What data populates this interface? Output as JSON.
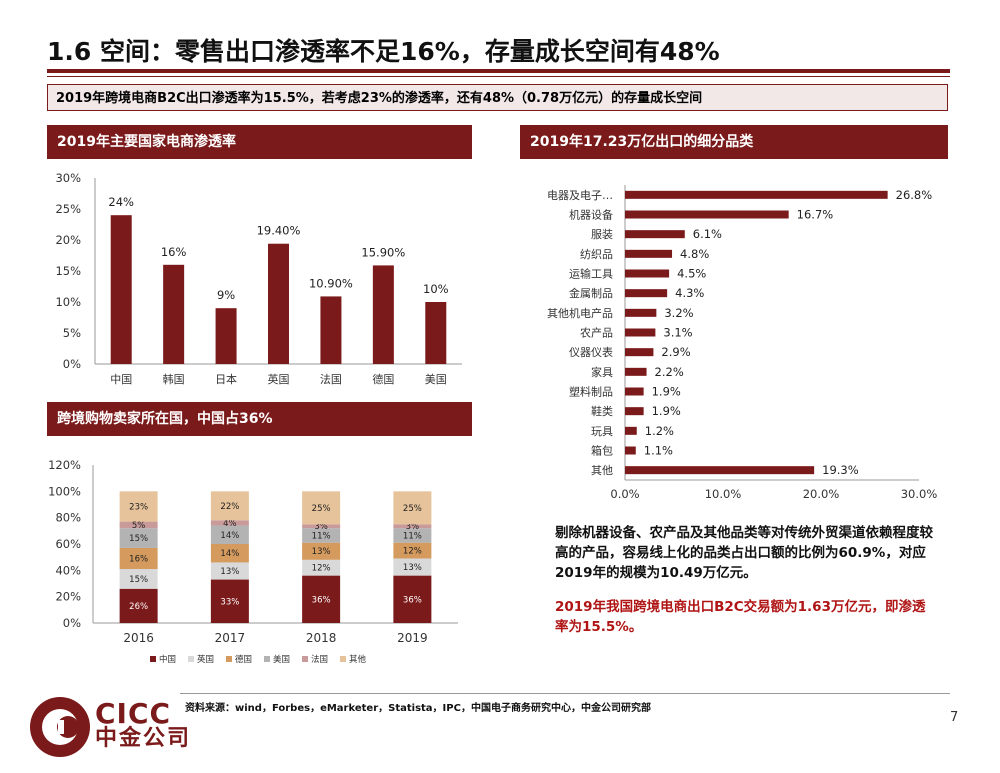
{
  "page": {
    "title": "1.6 空间：零售出口渗透率不足16%，存量成长空间有48%",
    "subtitle": "2019年跨境电商B2C出口渗透率为15.5%，若考虑23%的渗透率，还有48%（0.78万亿元）的存量成长空间",
    "note_black": "剔除机器设备、农产品及其他品类等对传统外贸渠道依赖程度较高的产品，容易线上化的品类占出口额的比例为60.9%，对应2019年的规模为10.49万亿元。",
    "note_red": "2019年我国跨境电商出口B2C交易额为1.63万亿元，即渗透率为15.5%。",
    "source": "资料来源：wind，Forbes，eMarketer，Statista，IPC，中国电子商务研究中心，中金公司研究部",
    "page_number": "7",
    "logo_en": "CICC",
    "logo_cn": "中金公司"
  },
  "colors": {
    "brand": "#7b1a1a",
    "bar": "#7b1a1a",
    "china": "#7b1a1a",
    "uk": "#d9d9d9",
    "germany": "#d49a5e",
    "usa": "#b3b3b3",
    "france": "#c99a9a",
    "other": "#e6c39a"
  },
  "chart_data": [
    {
      "type": "bar",
      "title": "2019年主要国家电商渗透率",
      "categories": [
        "中国",
        "韩国",
        "日本",
        "英国",
        "法国",
        "德国",
        "美国"
      ],
      "values": [
        24,
        16,
        9,
        19.4,
        10.9,
        15.9,
        10
      ],
      "labels": [
        "24%",
        "16%",
        "9%",
        "19.40%",
        "10.90%",
        "15.90%",
        "10%"
      ],
      "ylim": [
        0,
        30
      ],
      "yticks": [
        "0%",
        "5%",
        "10%",
        "15%",
        "20%",
        "25%",
        "30%"
      ]
    },
    {
      "type": "bar",
      "orientation": "horizontal",
      "title": "2019年17.23万亿出口的细分品类",
      "categories": [
        "电器及电子…",
        "机器设备",
        "服装",
        "纺织品",
        "运输工具",
        "金属制品",
        "其他机电产品",
        "农产品",
        "仪器仪表",
        "家具",
        "塑料制品",
        "鞋类",
        "玩具",
        "箱包",
        "其他"
      ],
      "values": [
        26.8,
        16.7,
        6.1,
        4.8,
        4.5,
        4.3,
        3.2,
        3.1,
        2.9,
        2.2,
        1.9,
        1.9,
        1.2,
        1.1,
        19.3
      ],
      "labels": [
        "26.8%",
        "16.7%",
        "6.1%",
        "4.8%",
        "4.5%",
        "4.3%",
        "3.2%",
        "3.1%",
        "2.9%",
        "2.2%",
        "1.9%",
        "1.9%",
        "1.2%",
        "1.1%",
        "19.3%"
      ],
      "xlim": [
        0,
        30
      ],
      "xticks": [
        "0.0%",
        "10.0%",
        "20.0%",
        "30.0%"
      ]
    },
    {
      "type": "bar",
      "stacked": true,
      "title": "跨境购物卖家所在国，中国占36%",
      "categories": [
        "2016",
        "2017",
        "2018",
        "2019"
      ],
      "ylim": [
        0,
        120
      ],
      "yticks": [
        "0%",
        "20%",
        "40%",
        "60%",
        "80%",
        "100%",
        "120%"
      ],
      "legend_position": "bottom",
      "series": [
        {
          "name": "中国",
          "values": [
            26,
            33,
            36,
            36
          ],
          "labels": [
            "26%",
            "33%",
            "36%",
            "36%"
          ]
        },
        {
          "name": "英国",
          "values": [
            15,
            13,
            12,
            13
          ],
          "labels": [
            "15%",
            "13%",
            "12%",
            "13%"
          ]
        },
        {
          "name": "德国",
          "values": [
            16,
            14,
            13,
            12
          ],
          "labels": [
            "16%",
            "14%",
            "13%",
            "12%"
          ]
        },
        {
          "name": "美国",
          "values": [
            15,
            14,
            11,
            11
          ],
          "labels": [
            "15%",
            "14%",
            "11%",
            "11%"
          ]
        },
        {
          "name": "法国",
          "values": [
            5,
            4,
            3,
            3
          ],
          "labels": [
            "5%",
            "4%",
            "3%",
            "3%"
          ]
        },
        {
          "name": "其他",
          "values": [
            23,
            22,
            25,
            25
          ],
          "labels": [
            "23%",
            "22%",
            "25%",
            "25%"
          ]
        }
      ]
    }
  ]
}
